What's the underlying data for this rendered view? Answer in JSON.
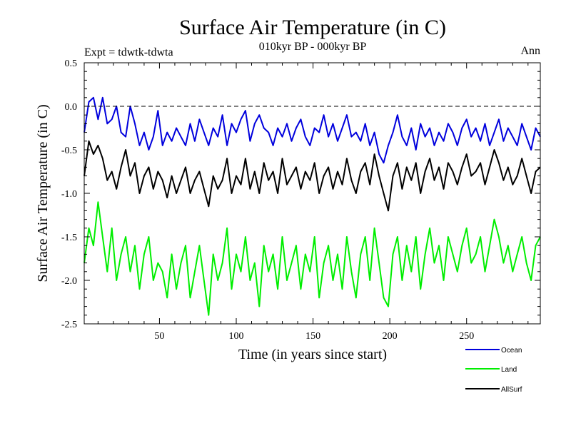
{
  "chart_data": {
    "type": "line",
    "title": "Surface Air Temperature (in C)",
    "subtitle": "010kyr BP - 000kyr BP",
    "experiment_label": "Expt = tdwtk-tdwta",
    "season_label": "Ann",
    "xlabel": "Time (in years since start)",
    "ylabel": "Surface Air Temperature (in C)",
    "xlim": [
      1,
      298
    ],
    "ylim": [
      -2.5,
      0.5
    ],
    "x_ticks": [
      50,
      100,
      150,
      200,
      250
    ],
    "x_tick_labels": [
      "50",
      "100",
      "150",
      "200",
      "250"
    ],
    "y_ticks": [
      0.5,
      0.0,
      -0.5,
      -1.0,
      -1.5,
      -2.0,
      -2.5
    ],
    "y_tick_labels": [
      "0.5",
      "0.0",
      "-0.5",
      "-1.0",
      "-1.5",
      "-2.0",
      "-2.5"
    ],
    "reference_line": 0.0,
    "series": [
      {
        "name": "Ocean",
        "color": "#0000dd",
        "x": [
          1,
          4,
          7,
          10,
          13,
          16,
          19,
          22,
          25,
          28,
          31,
          34,
          37,
          40,
          43,
          46,
          49,
          52,
          55,
          58,
          61,
          64,
          67,
          70,
          73,
          76,
          79,
          82,
          85,
          88,
          91,
          94,
          97,
          100,
          103,
          106,
          109,
          112,
          115,
          118,
          121,
          124,
          127,
          130,
          133,
          136,
          139,
          142,
          145,
          148,
          151,
          154,
          157,
          160,
          163,
          166,
          169,
          172,
          175,
          178,
          181,
          184,
          187,
          190,
          193,
          196,
          199,
          202,
          205,
          208,
          211,
          214,
          217,
          220,
          223,
          226,
          229,
          232,
          235,
          238,
          241,
          244,
          247,
          250,
          253,
          256,
          259,
          262,
          265,
          268,
          271,
          274,
          277,
          280,
          283,
          286,
          289,
          292,
          295,
          298
        ],
        "values": [
          -0.3,
          0.05,
          0.1,
          -0.15,
          0.1,
          -0.2,
          -0.15,
          0.0,
          -0.3,
          -0.35,
          0.0,
          -0.2,
          -0.45,
          -0.3,
          -0.5,
          -0.35,
          -0.05,
          -0.45,
          -0.3,
          -0.4,
          -0.25,
          -0.35,
          -0.45,
          -0.2,
          -0.4,
          -0.15,
          -0.3,
          -0.45,
          -0.25,
          -0.35,
          -0.1,
          -0.45,
          -0.2,
          -0.3,
          -0.15,
          -0.05,
          -0.4,
          -0.2,
          -0.1,
          -0.25,
          -0.3,
          -0.45,
          -0.25,
          -0.35,
          -0.2,
          -0.4,
          -0.25,
          -0.15,
          -0.35,
          -0.45,
          -0.25,
          -0.3,
          -0.1,
          -0.35,
          -0.2,
          -0.4,
          -0.25,
          -0.1,
          -0.35,
          -0.3,
          -0.4,
          -0.2,
          -0.45,
          -0.3,
          -0.55,
          -0.65,
          -0.45,
          -0.3,
          -0.1,
          -0.35,
          -0.45,
          -0.25,
          -0.5,
          -0.2,
          -0.35,
          -0.25,
          -0.45,
          -0.3,
          -0.4,
          -0.2,
          -0.3,
          -0.45,
          -0.25,
          -0.15,
          -0.35,
          -0.25,
          -0.4,
          -0.2,
          -0.45,
          -0.3,
          -0.15,
          -0.4,
          -0.25,
          -0.35,
          -0.45,
          -0.2,
          -0.35,
          -0.5,
          -0.25,
          -0.35
        ]
      },
      {
        "name": "Land",
        "color": "#00ee00",
        "x": [
          1,
          4,
          7,
          10,
          13,
          16,
          19,
          22,
          25,
          28,
          31,
          34,
          37,
          40,
          43,
          46,
          49,
          52,
          55,
          58,
          61,
          64,
          67,
          70,
          73,
          76,
          79,
          82,
          85,
          88,
          91,
          94,
          97,
          100,
          103,
          106,
          109,
          112,
          115,
          118,
          121,
          124,
          127,
          130,
          133,
          136,
          139,
          142,
          145,
          148,
          151,
          154,
          157,
          160,
          163,
          166,
          169,
          172,
          175,
          178,
          181,
          184,
          187,
          190,
          193,
          196,
          199,
          202,
          205,
          208,
          211,
          214,
          217,
          220,
          223,
          226,
          229,
          232,
          235,
          238,
          241,
          244,
          247,
          250,
          253,
          256,
          259,
          262,
          265,
          268,
          271,
          274,
          277,
          280,
          283,
          286,
          289,
          292,
          295,
          298
        ],
        "values": [
          -1.8,
          -1.4,
          -1.6,
          -1.1,
          -1.5,
          -1.9,
          -1.4,
          -2.0,
          -1.7,
          -1.5,
          -1.9,
          -1.6,
          -2.1,
          -1.7,
          -1.5,
          -2.0,
          -1.8,
          -1.9,
          -2.2,
          -1.7,
          -2.1,
          -1.8,
          -1.6,
          -2.2,
          -1.9,
          -1.6,
          -2.0,
          -2.4,
          -1.7,
          -2.0,
          -1.8,
          -1.4,
          -2.1,
          -1.7,
          -1.9,
          -1.5,
          -2.0,
          -1.8,
          -2.3,
          -1.6,
          -1.9,
          -1.7,
          -2.1,
          -1.5,
          -2.0,
          -1.8,
          -1.6,
          -2.1,
          -1.7,
          -1.9,
          -1.5,
          -2.2,
          -1.8,
          -1.6,
          -2.0,
          -1.7,
          -2.1,
          -1.5,
          -1.9,
          -2.2,
          -1.7,
          -1.5,
          -2.0,
          -1.4,
          -1.8,
          -2.2,
          -2.3,
          -1.7,
          -1.5,
          -2.0,
          -1.6,
          -1.9,
          -1.5,
          -2.1,
          -1.7,
          -1.4,
          -1.8,
          -1.6,
          -2.0,
          -1.5,
          -1.7,
          -1.9,
          -1.6,
          -1.4,
          -1.8,
          -1.7,
          -1.5,
          -1.9,
          -1.6,
          -1.3,
          -1.5,
          -1.8,
          -1.6,
          -1.9,
          -1.7,
          -1.5,
          -1.8,
          -2.0,
          -1.6,
          -1.5
        ]
      },
      {
        "name": "AllSurf",
        "color": "#000000",
        "x": [
          1,
          4,
          7,
          10,
          13,
          16,
          19,
          22,
          25,
          28,
          31,
          34,
          37,
          40,
          43,
          46,
          49,
          52,
          55,
          58,
          61,
          64,
          67,
          70,
          73,
          76,
          79,
          82,
          85,
          88,
          91,
          94,
          97,
          100,
          103,
          106,
          109,
          112,
          115,
          118,
          121,
          124,
          127,
          130,
          133,
          136,
          139,
          142,
          145,
          148,
          151,
          154,
          157,
          160,
          163,
          166,
          169,
          172,
          175,
          178,
          181,
          184,
          187,
          190,
          193,
          196,
          199,
          202,
          205,
          208,
          211,
          214,
          217,
          220,
          223,
          226,
          229,
          232,
          235,
          238,
          241,
          244,
          247,
          250,
          253,
          256,
          259,
          262,
          265,
          268,
          271,
          274,
          277,
          280,
          283,
          286,
          289,
          292,
          295,
          298
        ],
        "values": [
          -0.8,
          -0.4,
          -0.55,
          -0.45,
          -0.6,
          -0.85,
          -0.75,
          -0.95,
          -0.7,
          -0.5,
          -0.8,
          -0.65,
          -1.0,
          -0.8,
          -0.7,
          -0.95,
          -0.75,
          -0.85,
          -1.05,
          -0.8,
          -1.0,
          -0.85,
          -0.7,
          -1.0,
          -0.85,
          -0.75,
          -0.95,
          -1.15,
          -0.8,
          -0.95,
          -0.85,
          -0.6,
          -1.0,
          -0.8,
          -0.9,
          -0.6,
          -0.95,
          -0.75,
          -1.0,
          -0.65,
          -0.85,
          -0.75,
          -1.0,
          -0.6,
          -0.9,
          -0.8,
          -0.7,
          -0.95,
          -0.75,
          -0.85,
          -0.65,
          -1.0,
          -0.8,
          -0.7,
          -0.95,
          -0.75,
          -0.9,
          -0.6,
          -0.85,
          -1.0,
          -0.75,
          -0.65,
          -0.9,
          -0.55,
          -0.8,
          -1.0,
          -1.2,
          -0.8,
          -0.65,
          -0.95,
          -0.7,
          -0.85,
          -0.65,
          -1.0,
          -0.75,
          -0.6,
          -0.85,
          -0.7,
          -0.95,
          -0.65,
          -0.75,
          -0.9,
          -0.7,
          -0.55,
          -0.8,
          -0.75,
          -0.65,
          -0.9,
          -0.7,
          -0.5,
          -0.65,
          -0.85,
          -0.7,
          -0.9,
          -0.8,
          -0.6,
          -0.8,
          -1.0,
          -0.75,
          -0.7
        ]
      }
    ],
    "legend": {
      "placement": "bottom-right",
      "entries": [
        "Ocean",
        "Land",
        "AllSurf"
      ]
    }
  }
}
